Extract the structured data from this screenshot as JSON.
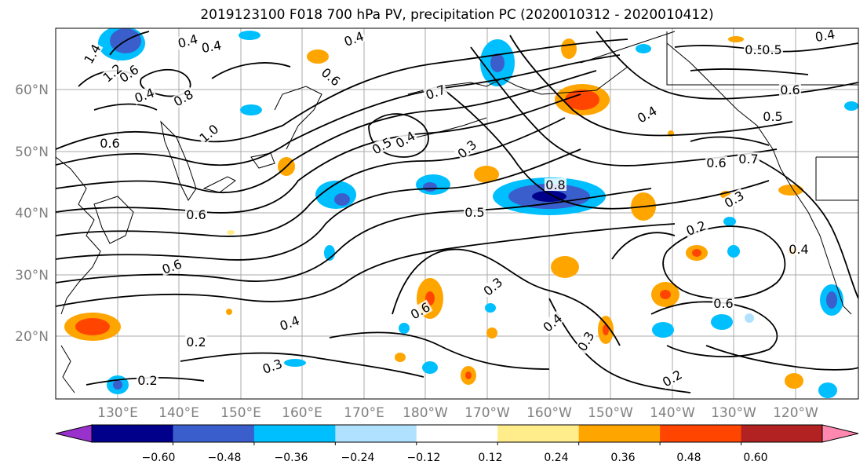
{
  "title": "2019123100 F018 700 hPa PV, precipitation PC (2020010312 - 2020010412)",
  "lat_labels": [
    "60°N",
    "50°N",
    "40°N",
    "30°N",
    "20°N"
  ],
  "lon_labels": [
    "130°E",
    "140°E",
    "150°E",
    "160°E",
    "170°E",
    "180°W",
    "170°W",
    "160°W",
    "150°W",
    "140°W",
    "130°W",
    "120°W"
  ],
  "colorbar": {
    "ticks": [
      "−0.60",
      "−0.48",
      "−0.36",
      "−0.24",
      "−0.12",
      "0.12",
      "0.24",
      "0.36",
      "0.48",
      "0.60"
    ],
    "colors": [
      "#9932cc",
      "#00008b",
      "#3a5fcd",
      "#00bfff",
      "#b0e2ff",
      "#ffffff",
      "#ffec8b",
      "#ffa500",
      "#ff4500",
      "#b22222",
      "#ff88b0"
    ]
  },
  "contour_labels": [
    "0.4",
    "0.4",
    "0.4",
    "0.5",
    "0.4",
    "0.6",
    "0.6",
    "1.4",
    "1.2",
    "0.4",
    "0.8",
    "1.0",
    "0.6",
    "0.6",
    "0.5",
    "0.4",
    "0.3",
    "0.7",
    "0.8",
    "0.5",
    "0.4",
    "0.6",
    "0.7",
    "0.3",
    "0.6",
    "0.2",
    "0.5",
    "0.4",
    "0.2",
    "0.3",
    "0.6",
    "0.2",
    "0.3",
    "0.6",
    "0.4",
    "0.3",
    "0.2",
    "0.6",
    "0.5",
    "0.4"
  ]
}
